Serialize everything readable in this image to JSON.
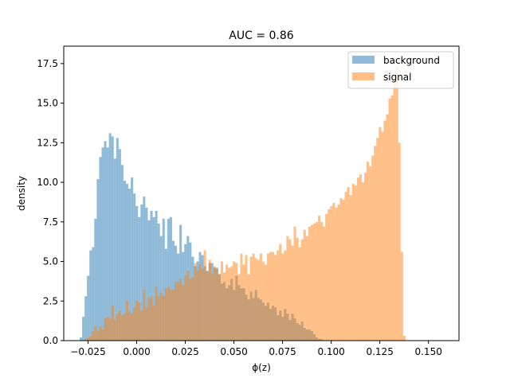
{
  "chart_data": {
    "type": "bar",
    "title": "AUC = 0.86",
    "xlabel": "ϕ(z)",
    "ylabel": "density",
    "xlim": [
      -0.0375,
      0.1657
    ],
    "ylim": [
      0,
      18.6
    ],
    "xticks": [
      -0.025,
      0.0,
      0.025,
      0.05,
      0.075,
      0.1,
      0.125,
      0.15
    ],
    "xtick_labels": [
      "−0.025",
      "0.000",
      "0.025",
      "0.050",
      "0.075",
      "0.100",
      "0.125",
      "0.150"
    ],
    "yticks": [
      0.0,
      2.5,
      5.0,
      7.5,
      10.0,
      12.5,
      15.0,
      17.5
    ],
    "ytick_labels": [
      "0.0",
      "2.5",
      "5.0",
      "7.5",
      "10.0",
      "12.5",
      "15.0",
      "17.5"
    ],
    "legend_position": "top-right",
    "series": [
      {
        "name": "background",
        "color": "#1f77b4",
        "alpha": 0.5,
        "x_start": -0.0293,
        "bin_width": 0.00125,
        "values": [
          0.2,
          1.5,
          2.8,
          4.1,
          5.7,
          5.9,
          7.7,
          10.2,
          11.6,
          12.2,
          12.6,
          12.2,
          13.1,
          12.9,
          11.5,
          12.8,
          12.1,
          11.1,
          10.1,
          9.9,
          9.6,
          10.3,
          9.3,
          8.5,
          7.8,
          8.6,
          9.1,
          8.4,
          7.6,
          8.2,
          7.8,
          8.2,
          7.4,
          6.6,
          7.7,
          5.8,
          7.7,
          7.8,
          6.3,
          6.0,
          5.5,
          7.3,
          5.6,
          6.1,
          6.6,
          6.2,
          5.3,
          4.7,
          5.0,
          5.6,
          5.4,
          4.7,
          4.4,
          4.9,
          4.9,
          4.6,
          4.6,
          4.2,
          3.6,
          3.7,
          3.3,
          3.5,
          3.9,
          3.2,
          4.1,
          3.5,
          3.3,
          3.3,
          2.9,
          2.6,
          3.1,
          2.7,
          3.2,
          2.7,
          2.6,
          2.4,
          2.2,
          2.4,
          2.0,
          2.2,
          2.1,
          1.6,
          1.9,
          1.5,
          2.0,
          1.7,
          1.3,
          1.7,
          1.4,
          1.1,
          1.0,
          1.2,
          0.8,
          0.7,
          0.7,
          0.6,
          0.4,
          0.2,
          0.1,
          0.1
        ]
      },
      {
        "name": "signal",
        "color": "#ff7f0e",
        "alpha": 0.5,
        "x_start": -0.0293,
        "bin_width": 0.00125,
        "values": [
          0.0,
          0.0,
          0.1,
          0.2,
          0.3,
          0.6,
          0.9,
          0.6,
          0.9,
          0.7,
          1.4,
          1.5,
          1.4,
          2.2,
          1.3,
          1.7,
          1.9,
          1.6,
          1.7,
          2.5,
          1.8,
          1.7,
          2.1,
          2.5,
          2.4,
          1.9,
          3.2,
          2.1,
          2.7,
          2.8,
          2.2,
          3.4,
          2.8,
          3.0,
          2.8,
          3.3,
          3.4,
          3.2,
          3.2,
          3.7,
          3.7,
          3.9,
          3.5,
          4.1,
          4.4,
          3.9,
          4.0,
          4.9,
          4.4,
          4.8,
          4.5,
          5.7,
          4.4,
          5.1,
          4.2,
          4.7,
          4.5,
          4.2,
          5.0,
          4.3,
          4.8,
          4.6,
          4.7,
          5.0,
          4.9,
          4.2,
          5.5,
          4.8,
          5.4,
          4.2,
          5.3,
          5.5,
          5.2,
          5.1,
          5.5,
          5.0,
          4.8,
          5.5,
          5.6,
          5.6,
          5.4,
          5.7,
          6.1,
          5.5,
          5.7,
          6.6,
          6.4,
          6.0,
          7.2,
          6.5,
          5.9,
          6.4,
          7.0,
          6.6,
          7.2,
          7.3,
          7.4,
          7.5,
          7.9,
          7.5,
          7.2,
          8.0,
          8.3,
          8.5,
          8.7,
          8.4,
          8.6,
          9.0,
          8.9,
          9.4,
          9.7,
          9.2,
          9.9,
          9.8,
          10.3,
          10.5,
          10.0,
          10.6,
          11.3,
          11.0,
          11.7,
          12.3,
          12.8,
          13.5,
          13.2,
          13.9,
          14.3,
          15.3,
          15.5,
          16.4,
          17.3,
          12.5,
          5.6,
          0.3
        ]
      }
    ]
  }
}
